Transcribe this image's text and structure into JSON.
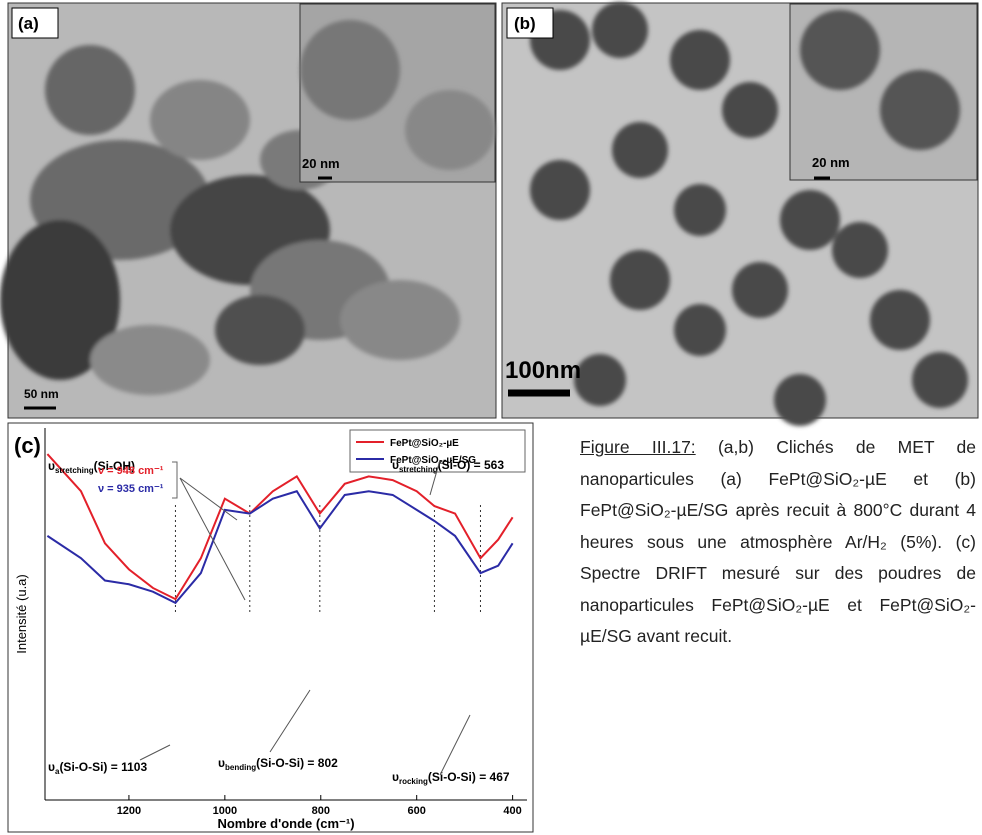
{
  "panels": {
    "a": {
      "label": "(a)",
      "inset_scale": "20 nm",
      "scale": "50 nm"
    },
    "b": {
      "label": "(b)",
      "inset_scale": "20 nm",
      "scale": "100nm"
    }
  },
  "chart_data": {
    "type": "line",
    "panel_label": "(c)",
    "xlabel": "Nombre d'onde (cm⁻¹)",
    "ylabel": "Intensité (u.a)",
    "x": [
      1370,
      1300,
      1250,
      1200,
      1150,
      1103,
      1050,
      1000,
      948,
      900,
      850,
      802,
      750,
      700,
      650,
      600,
      563,
      520,
      467,
      430,
      400
    ],
    "series": [
      {
        "name": "FePt@SiO₂-µE",
        "color": "#e3202a",
        "values": [
          93,
          83,
          69,
          62,
          57,
          54,
          65,
          81,
          77,
          83,
          87,
          77,
          85,
          87,
          86,
          83,
          79,
          77,
          65,
          70,
          76
        ]
      },
      {
        "name": "FePt@SiO₂-µE/SG",
        "color": "#2b2ba6",
        "values": [
          71,
          65,
          59,
          58,
          56,
          53,
          61,
          78,
          77,
          81,
          83,
          73,
          82,
          83,
          82,
          78,
          75,
          71,
          61,
          63,
          69
        ]
      }
    ],
    "xlim": [
      1375,
      370
    ],
    "ylim": [
      0,
      100
    ],
    "xticks": [
      1200,
      1000,
      800,
      600,
      400
    ],
    "legend": "upper right",
    "vlines": [
      1103,
      948,
      802,
      563,
      467
    ],
    "annotations": [
      [
        "υ",
        "stretching",
        "(Si-OH)"
      ],
      [
        "ν = 948 cm⁻¹",
        "",
        ""
      ],
      [
        "ν = 935 cm⁻¹",
        "",
        ""
      ],
      [
        "υ",
        "stretching",
        "(Si-O) = 563"
      ],
      [
        "υ",
        "a",
        "(Si-O-Si) = 1103"
      ],
      [
        "υ",
        "bending",
        "(Si-O-Si) = 802"
      ],
      [
        "υ",
        "rocking",
        "(Si-O-Si) = 467"
      ]
    ]
  },
  "caption": {
    "label": "Figure III.17:",
    "text": " (a,b) Clichés de MET de nanoparticules (a) FePt@SiO₂-µE et (b) FePt@SiO₂-µE/SG après recuit à 800°C durant 4 heures sous une atmosphère Ar/H₂ (5%). (c) Spectre DRIFT mesuré sur des poudres de nanoparticules FePt@SiO₂-µE et FePt@SiO₂-µE/SG avant recuit."
  }
}
